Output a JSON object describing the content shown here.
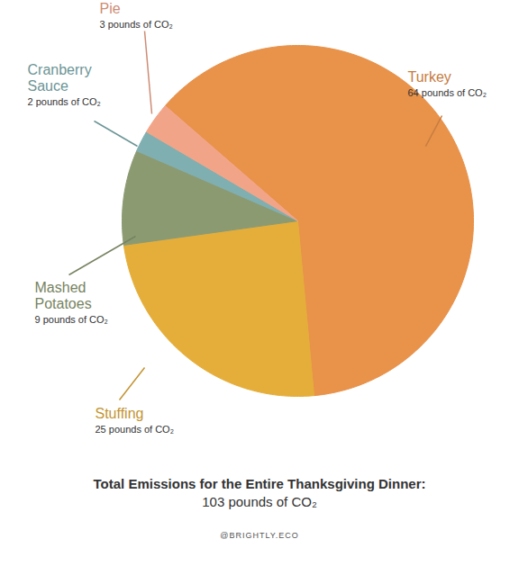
{
  "chart_data": {
    "type": "pie",
    "title": "Total Emissions for the Entire Thanksgiving Dinner:",
    "subtitle": "103 pounds of CO₂",
    "caption": "@BRIGHTLY.ECO",
    "categories": [
      "Turkey",
      "Stuffing",
      "Mashed Potatoes",
      "Cranberry Sauce",
      "Pie"
    ],
    "values": [
      64,
      25,
      9,
      2,
      3
    ],
    "value_labels": [
      "64 pounds of CO₂",
      "25 pounds of CO₂",
      "9 pounds of CO₂",
      "2 pounds of CO₂",
      "3 pounds of CO₂"
    ],
    "colors": [
      "#e8924a",
      "#e5ae3a",
      "#8c9a72",
      "#7fafb0",
      "#f2a488"
    ],
    "data_labels": true
  }
}
